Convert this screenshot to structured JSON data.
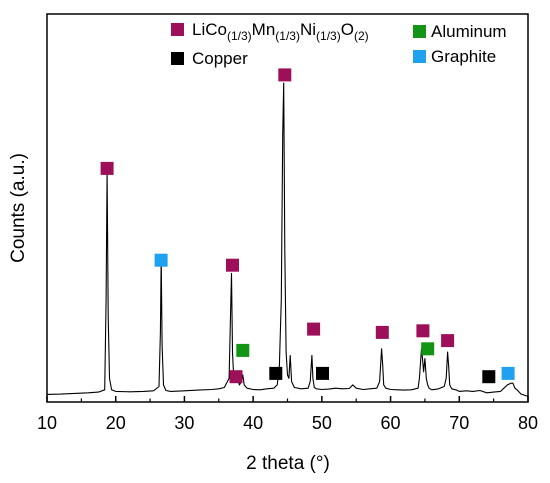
{
  "chart_data": {
    "type": "line",
    "title": "",
    "xlabel": "2 theta (°)",
    "ylabel": "Counts (a.u.)",
    "xlim": [
      10,
      80
    ],
    "ylim": [
      0,
      100
    ],
    "x_ticks": [
      "10",
      "20",
      "30",
      "40",
      "50",
      "60",
      "70",
      "80"
    ],
    "y_ticks_shown": false,
    "grid": false,
    "legend_position": "top",
    "series": [
      {
        "name": "",
        "color": "#000000",
        "x": [
          10,
          12,
          14,
          16,
          17.5,
          18.4,
          18.6,
          18.75,
          18.9,
          19.1,
          19.4,
          20,
          22,
          24,
          25.5,
          26.3,
          26.5,
          26.62,
          26.75,
          26.95,
          27.3,
          28,
          30,
          32,
          34,
          35,
          35.8,
          36.5,
          36.7,
          36.85,
          37,
          37.2,
          37.5,
          38.0,
          38.3,
          38.5,
          38.7,
          39.1,
          40,
          41,
          42,
          43,
          43.5,
          43.8,
          44.1,
          44.3,
          44.45,
          44.6,
          44.8,
          45,
          45.2,
          45.4,
          45.6,
          46,
          47,
          48,
          48.3,
          48.55,
          48.7,
          48.9,
          49.2,
          50,
          51,
          52,
          53,
          54,
          54.5,
          55,
          56,
          57,
          58,
          58.4,
          58.7,
          58.85,
          59,
          59.3,
          60,
          61,
          62,
          63,
          64,
          64.2,
          64.5,
          64.65,
          64.8,
          65.0,
          65.2,
          65.4,
          65.6,
          66,
          67,
          67.8,
          68.1,
          68.3,
          68.45,
          68.6,
          68.9,
          69.5,
          70,
          71,
          72,
          73,
          74,
          75,
          76,
          76.5,
          77,
          77.5,
          77.8,
          78.1,
          78.4,
          79,
          80
        ],
        "y": [
          1.1,
          1.2,
          1.4,
          1.6,
          1.8,
          2.5,
          30,
          69,
          25,
          6,
          2.5,
          2.0,
          1.9,
          2.0,
          2.2,
          3.5,
          20,
          43,
          16,
          4,
          2.3,
          2.0,
          2.2,
          2.4,
          2.6,
          2.8,
          3.2,
          6,
          25,
          38,
          14,
          5,
          8,
          4,
          5,
          7,
          4,
          3,
          2.6,
          2.5,
          2.8,
          3.0,
          4,
          9,
          30,
          80,
          96,
          45,
          14,
          7,
          6,
          13,
          5,
          3.2,
          2.8,
          3.0,
          5,
          13,
          6,
          3.2,
          2.8,
          2.6,
          2.7,
          3.0,
          2.8,
          2.9,
          4,
          3.0,
          2.6,
          2.8,
          3.0,
          5,
          15,
          10,
          4,
          3.0,
          2.6,
          2.5,
          2.4,
          2.5,
          3.0,
          6,
          15,
          12,
          8,
          12,
          6,
          4,
          3.0,
          2.5,
          2.8,
          3.5,
          6,
          14,
          10,
          4,
          2.8,
          2.5,
          2.0,
          2.2,
          2.0,
          2.3,
          1.6,
          1.8,
          2.0,
          3.0,
          4,
          4.5,
          4.5,
          3.0,
          2.5,
          1.2,
          0.5
        ]
      }
    ],
    "markers": [
      {
        "legend": "LiCo(1/3)Mn(1/3)Ni(1/3)O(2)",
        "color": "#9e0f5a",
        "x": 18.75,
        "y": 70
      },
      {
        "legend": "LiCo(1/3)Mn(1/3)Ni(1/3)O(2)",
        "color": "#9e0f5a",
        "x": 37.0,
        "y": 40.5
      },
      {
        "legend": "LiCo(1/3)Mn(1/3)Ni(1/3)O(2)",
        "color": "#9e0f5a",
        "x": 37.5,
        "y": 6.5
      },
      {
        "legend": "LiCo(1/3)Mn(1/3)Ni(1/3)O(2)",
        "color": "#9e0f5a",
        "x": 44.6,
        "y": 98.5
      },
      {
        "legend": "LiCo(1/3)Mn(1/3)Ni(1/3)O(2)",
        "color": "#9e0f5a",
        "x": 48.8,
        "y": 21.0
      },
      {
        "legend": "LiCo(1/3)Mn(1/3)Ni(1/3)O(2)",
        "color": "#9e0f5a",
        "x": 58.8,
        "y": 20.0
      },
      {
        "legend": "LiCo(1/3)Mn(1/3)Ni(1/3)O(2)",
        "color": "#9e0f5a",
        "x": 64.7,
        "y": 20.5
      },
      {
        "legend": "LiCo(1/3)Mn(1/3)Ni(1/3)O(2)",
        "color": "#9e0f5a",
        "x": 68.3,
        "y": 17.5
      },
      {
        "legend": "Graphite",
        "color": "#1ea1ee",
        "x": 26.6,
        "y": 42.0
      },
      {
        "legend": "Graphite",
        "color": "#1ea1ee",
        "x": 77.1,
        "y": 7.5
      },
      {
        "legend": "Aluminum",
        "color": "#149414",
        "x": 38.5,
        "y": 14.5
      },
      {
        "legend": "Aluminum",
        "color": "#149414",
        "x": 65.4,
        "y": 15.0
      },
      {
        "legend": "Copper",
        "color": "#000000",
        "x": 43.3,
        "y": 7.5
      },
      {
        "legend": "Copper",
        "color": "#000000",
        "x": 50.1,
        "y": 7.5
      },
      {
        "legend": "Copper",
        "color": "#000000",
        "x": 74.3,
        "y": 6.5
      }
    ]
  },
  "legend": {
    "items": [
      {
        "key": "licmno",
        "color": "#9e0f5a"
      },
      {
        "key": "aluminum",
        "label": "Aluminum",
        "color": "#149414"
      },
      {
        "key": "copper",
        "label": "Copper",
        "color": "#000000"
      },
      {
        "key": "graphite",
        "label": "Graphite",
        "color": "#1ea1ee"
      }
    ],
    "licmno_parts": {
      "p1": "LiCo",
      "s1": "(1/3)",
      "p2": "Mn",
      "s2": "(1/3)",
      "p3": "Ni",
      "s3": "(1/3)",
      "p4": "O",
      "s4": "(2)"
    }
  }
}
